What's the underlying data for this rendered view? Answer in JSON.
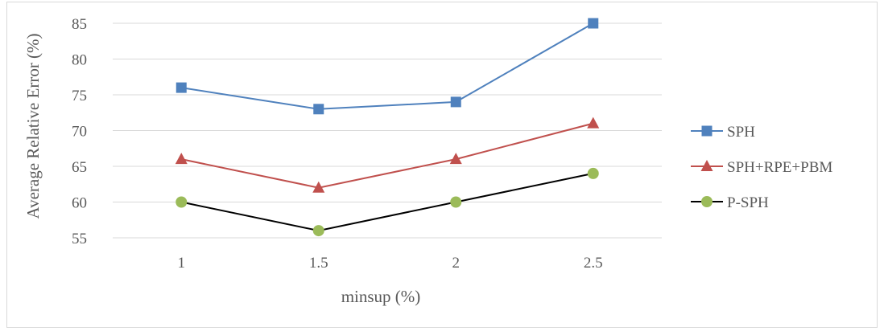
{
  "chart_data": {
    "type": "line",
    "x": [
      "1",
      "1.5",
      "2",
      "2.5"
    ],
    "xlabel": "minsup (%)",
    "ylabel": "Average Relative Error (%)",
    "ylim": [
      55,
      85
    ],
    "yticks": [
      55,
      60,
      65,
      70,
      75,
      80,
      85
    ],
    "grid": true,
    "legend_position": "right",
    "series": [
      {
        "name": "SPH",
        "values": [
          76,
          73,
          74,
          85
        ],
        "color": "#4f81bd",
        "marker": "square"
      },
      {
        "name": "SPH+RPE+PBM",
        "values": [
          66,
          62,
          66,
          71
        ],
        "color": "#c0504d",
        "marker": "triangle"
      },
      {
        "name": "P-SPH",
        "values": [
          60,
          56,
          60,
          64
        ],
        "color": "#9bbb59",
        "line_color": "#000000",
        "marker": "circle"
      }
    ]
  }
}
